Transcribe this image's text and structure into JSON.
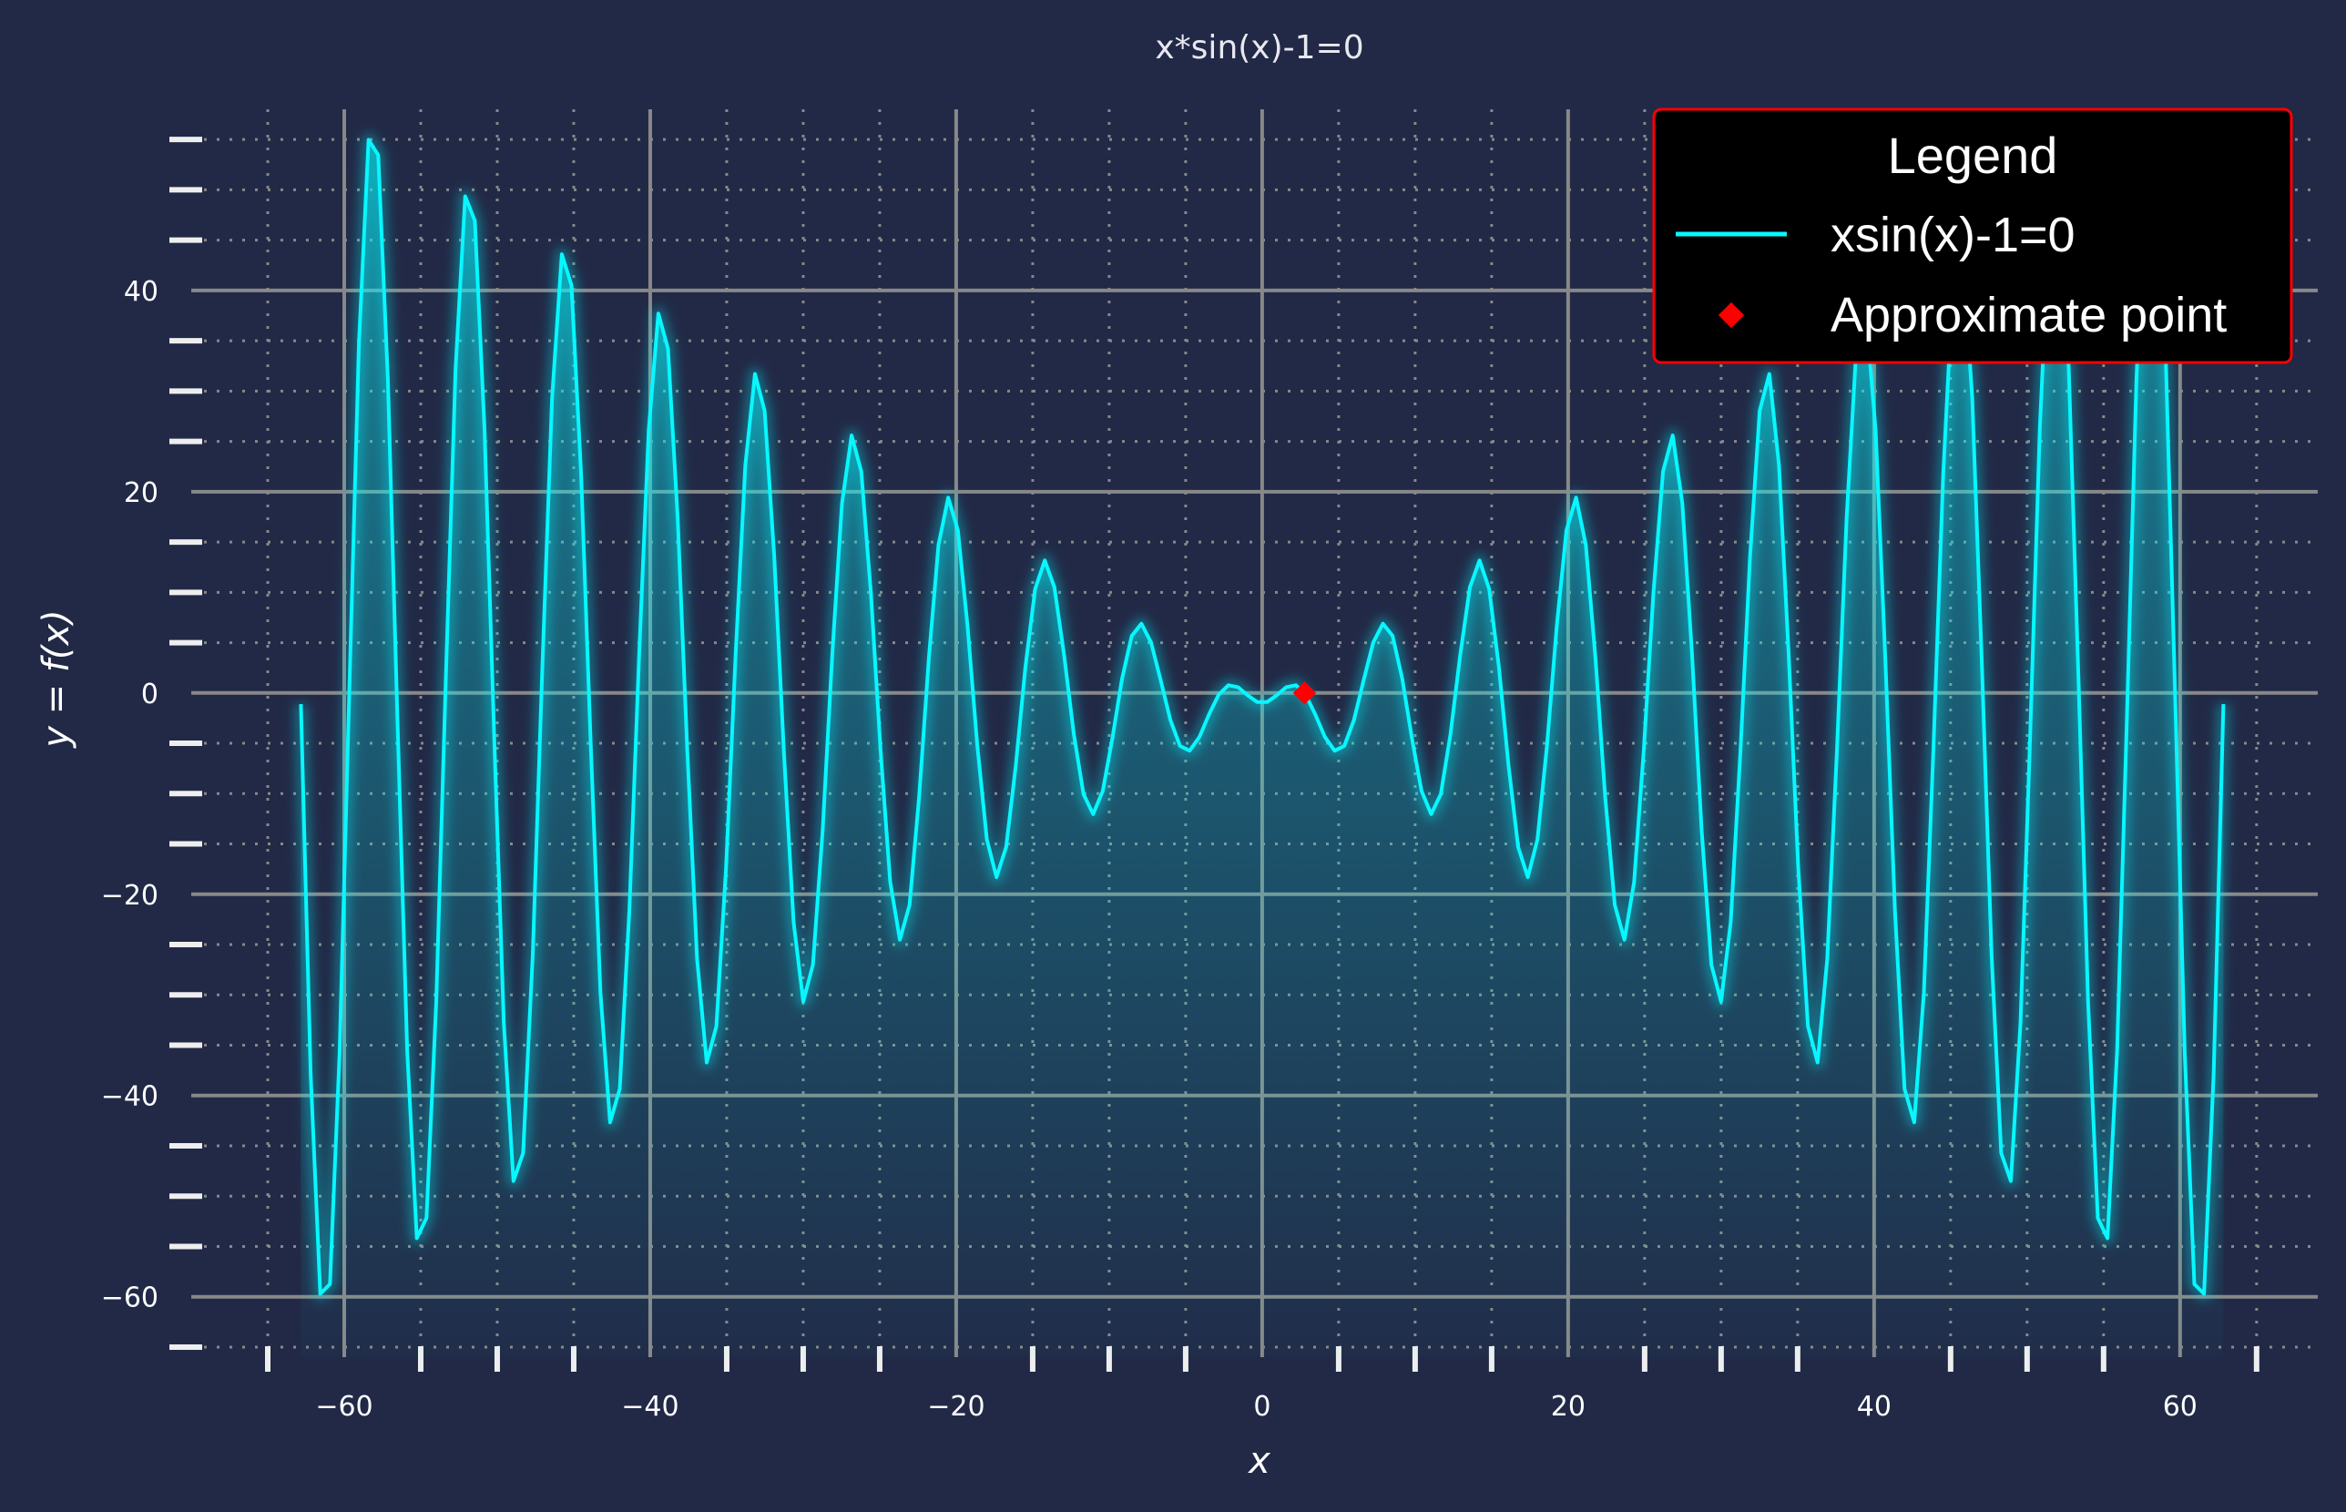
{
  "chart_data": {
    "type": "line",
    "title": "x*sin(x)-1=0",
    "xlabel": "x",
    "ylabel": "y = f(x)",
    "xlim": [
      -70,
      69
    ],
    "ylim": [
      -66,
      58
    ],
    "x_ticks": [
      -60,
      -40,
      -20,
      0,
      20,
      40,
      60
    ],
    "y_ticks": [
      -60,
      -40,
      -20,
      0,
      20,
      40
    ],
    "x_tick_labels": [
      "−60",
      "−40",
      "−20",
      "0",
      "20",
      "40",
      "60"
    ],
    "y_tick_labels": [
      "−60",
      "−40",
      "−20",
      "0",
      "20",
      "40"
    ],
    "x_minor_step": 5,
    "y_minor_step": 5,
    "grid": true,
    "function": "x*sin(x)-1",
    "series": [
      {
        "name": "xsin(x)-1=0",
        "x_range": [
          -62.83,
          62.83
        ],
        "samples": 200,
        "color": "#08F7FE"
      }
    ],
    "points": [
      {
        "name": "Approximate point",
        "x": 2.77,
        "y": 0,
        "color": "#FF0000"
      }
    ],
    "legend": {
      "title": "Legend",
      "position": "top-right",
      "entries": [
        "xsin(x)-1=0",
        "Approximate point"
      ],
      "border_color": "#FF0000"
    },
    "colors": {
      "background": "#212946",
      "line": "#08F7FE",
      "grid": "#888888",
      "point": "#FF0000"
    }
  }
}
